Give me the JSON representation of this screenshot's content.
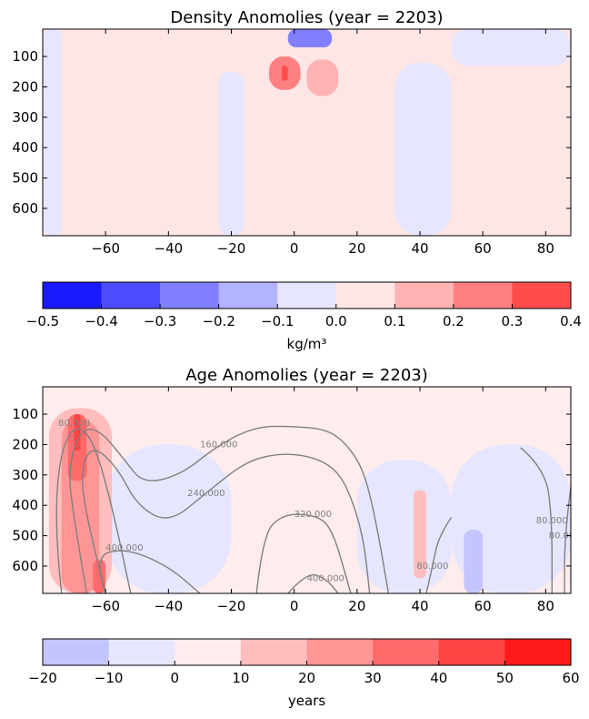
{
  "chart_data": [
    {
      "type": "heatmap",
      "title": "Density Anomolies (year = 2203)",
      "xlabel": "",
      "ylabel": "",
      "xlim": [
        -80,
        88
      ],
      "ylim": [
        690,
        10
      ],
      "y_inverted": true,
      "x_ticks": [
        -60,
        -40,
        -20,
        0,
        20,
        40,
        60,
        80
      ],
      "y_ticks": [
        100,
        200,
        300,
        400,
        500,
        600
      ],
      "background_level": "0.0 to 0.1",
      "regions": [
        {
          "level": "-0.1 to 0.0",
          "x": [
            -80,
            -74
          ],
          "y": [
            10,
            690
          ]
        },
        {
          "level": "-0.1 to 0.0",
          "x": [
            -24,
            -16
          ],
          "y": [
            150,
            690
          ]
        },
        {
          "level": "-0.1 to 0.0",
          "x": [
            32,
            50
          ],
          "y": [
            120,
            690
          ]
        },
        {
          "level": "-0.1 to 0.0",
          "x": [
            50,
            88
          ],
          "y": [
            10,
            130
          ]
        },
        {
          "level": "-0.5 to -0.4",
          "x": [
            2,
            8
          ],
          "y": [
            10,
            45
          ]
        },
        {
          "level": "-0.3 to -0.2",
          "x": [
            -2,
            12
          ],
          "y": [
            10,
            70
          ]
        },
        {
          "level": "0.2 to 0.3",
          "x": [
            -8,
            2
          ],
          "y": [
            100,
            210
          ]
        },
        {
          "level": "0.3 to 0.4",
          "x": [
            -4,
            -2
          ],
          "y": [
            130,
            180
          ]
        },
        {
          "level": "0.1 to 0.2",
          "x": [
            4,
            14
          ],
          "y": [
            110,
            230
          ]
        }
      ],
      "colorbar": {
        "label": "kg/m³",
        "boundaries": [
          -0.5,
          -0.4,
          -0.3,
          -0.2,
          -0.1,
          0.0,
          0.1,
          0.2,
          0.3,
          0.4
        ],
        "tick_labels": [
          "−0.5",
          "−0.4",
          "−0.3",
          "−0.2",
          "−0.1",
          "0.0",
          "0.1",
          "0.2",
          "0.3",
          "0.4"
        ],
        "colors": [
          "#1a1aff",
          "#4d4dff",
          "#8080ff",
          "#b3b3ff",
          "#e6e6ff",
          "#ffe6e6",
          "#ffb3b3",
          "#ff8080",
          "#ff4d4d"
        ]
      }
    },
    {
      "type": "heatmap",
      "title": "Age Anomolies (year = 2203)",
      "xlabel": "",
      "ylabel": "",
      "xlim": [
        -80,
        88
      ],
      "ylim": [
        690,
        10
      ],
      "y_inverted": true,
      "x_ticks": [
        -60,
        -40,
        -20,
        0,
        20,
        40,
        60,
        80
      ],
      "y_ticks": [
        100,
        200,
        300,
        400,
        500,
        600
      ],
      "background_level": "0 to 10",
      "regions": [
        {
          "level": "-10 to 0",
          "x": [
            -60,
            -20
          ],
          "y": [
            200,
            690
          ]
        },
        {
          "level": "-10 to 0",
          "x": [
            20,
            50
          ],
          "y": [
            250,
            690
          ]
        },
        {
          "level": "-10 to 0",
          "x": [
            50,
            88
          ],
          "y": [
            200,
            690
          ]
        },
        {
          "level": "-20 to -10",
          "x": [
            54,
            60
          ],
          "y": [
            480,
            690
          ]
        },
        {
          "level": "10 to 20",
          "x": [
            -78,
            -58
          ],
          "y": [
            80,
            690
          ]
        },
        {
          "level": "20 to 30",
          "x": [
            -74,
            -62
          ],
          "y": [
            120,
            690
          ]
        },
        {
          "level": "30 to 40",
          "x": [
            -72,
            -66
          ],
          "y": [
            100,
            320
          ]
        },
        {
          "level": "40 to 50",
          "x": [
            -70,
            -68
          ],
          "y": [
            100,
            220
          ]
        },
        {
          "level": "30 to 40",
          "x": [
            -64,
            -60
          ],
          "y": [
            580,
            690
          ]
        },
        {
          "level": "10 to 20",
          "x": [
            38,
            42
          ],
          "y": [
            350,
            640
          ]
        }
      ],
      "contours": [
        {
          "label": "80.000",
          "points": [
            [
              -74,
              690
            ],
            [
              -76,
              500
            ],
            [
              -75,
              250
            ],
            [
              -70,
              130
            ],
            [
              -64,
              180
            ],
            [
              -58,
              400
            ],
            [
              -52,
              690
            ]
          ]
        },
        {
          "label": "160.000",
          "points": [
            [
              -66,
              690
            ],
            [
              -70,
              450
            ],
            [
              -72,
              280
            ],
            [
              -68,
              150
            ],
            [
              -62,
              150
            ],
            [
              -54,
              250
            ],
            [
              -48,
              330
            ],
            [
              -36,
              300
            ],
            [
              -24,
              200
            ],
            [
              -12,
              140
            ],
            [
              0,
              140
            ],
            [
              10,
              150
            ],
            [
              16,
              190
            ],
            [
              22,
              280
            ],
            [
              26,
              450
            ],
            [
              30,
              690
            ]
          ]
        },
        {
          "label": "240.000",
          "points": [
            [
              -60,
              690
            ],
            [
              -66,
              450
            ],
            [
              -68,
              280
            ],
            [
              -64,
              200
            ],
            [
              -56,
              280
            ],
            [
              -50,
              400
            ],
            [
              -40,
              460
            ],
            [
              -28,
              360
            ],
            [
              -16,
              260
            ],
            [
              -6,
              230
            ],
            [
              4,
              235
            ],
            [
              12,
              270
            ],
            [
              17,
              340
            ],
            [
              22,
              500
            ],
            [
              24,
              690
            ]
          ]
        },
        {
          "label": "320.000",
          "points": [
            [
              -12,
              690
            ],
            [
              -10,
              500
            ],
            [
              -4,
              430
            ],
            [
              6,
              430
            ],
            [
              12,
              470
            ],
            [
              18,
              690
            ]
          ]
        },
        {
          "label": "400.000",
          "points": [
            [
              -60,
              690
            ],
            [
              -64,
              570
            ],
            [
              -54,
              540
            ],
            [
              -40,
              600
            ],
            [
              -30,
              690
            ]
          ]
        },
        {
          "label": "400.000",
          "points": [
            [
              -2,
              690
            ],
            [
              4,
              620
            ],
            [
              10,
              640
            ],
            [
              14,
              690
            ]
          ]
        },
        {
          "label": "80.000",
          "points": [
            [
              50,
              440
            ],
            [
              46,
              500
            ],
            [
              44,
              600
            ],
            [
              42,
              690
            ]
          ]
        },
        {
          "label": "80.000",
          "points": [
            [
              72,
              210
            ],
            [
              80,
              280
            ],
            [
              82,
              450
            ],
            [
              82,
              690
            ]
          ]
        },
        {
          "label": "80.000",
          "points": [
            [
              88,
              340
            ],
            [
              86,
              500
            ],
            [
              86,
              690
            ]
          ]
        }
      ],
      "colorbar": {
        "label": "years",
        "boundaries": [
          -20,
          -10,
          0,
          10,
          20,
          30,
          40,
          50,
          60
        ],
        "tick_labels": [
          "−20",
          "−10",
          "0",
          "10",
          "20",
          "30",
          "40",
          "50",
          "60"
        ],
        "colors": [
          "#c4c4ff",
          "#e6e6ff",
          "#ffecec",
          "#ffbdbd",
          "#ff9595",
          "#ff6b6b",
          "#ff4444",
          "#ff1a1a"
        ]
      }
    }
  ]
}
